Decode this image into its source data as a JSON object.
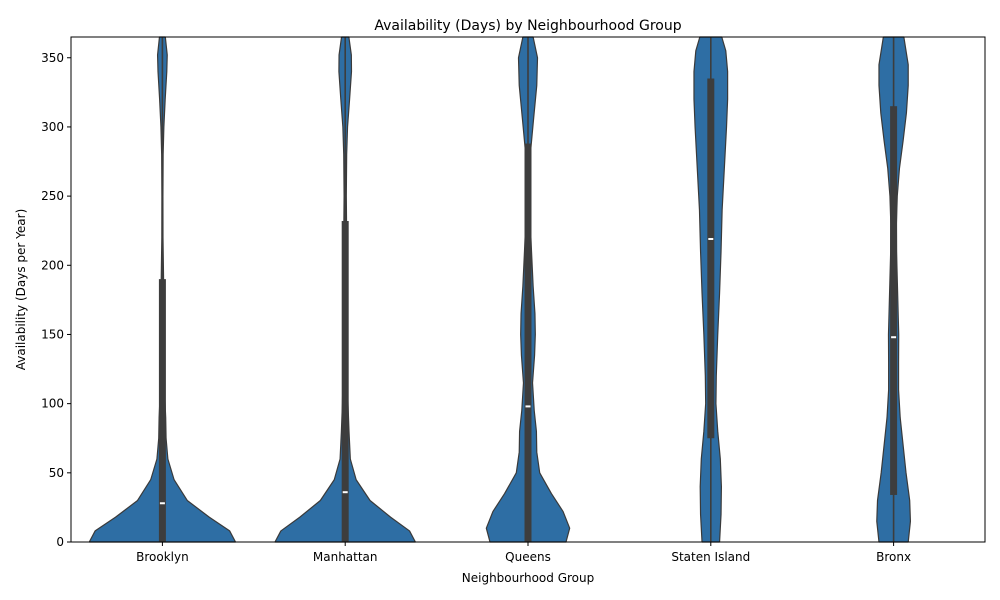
{
  "chart_data": {
    "type": "violin",
    "title": "Availability (Days) by Neighbourhood Group",
    "xlabel": "Neighbourhood Group",
    "ylabel": "Availability (Days per Year)",
    "ylim": [
      0,
      365
    ],
    "yticks": [
      0,
      50,
      100,
      150,
      200,
      250,
      300,
      350
    ],
    "categories": [
      "Brooklyn",
      "Manhattan",
      "Queens",
      "Staten Island",
      "Bronx"
    ],
    "color": "#2e6ea4",
    "box_color": "#3d3d3d",
    "grid": false,
    "legend": "none",
    "violins": [
      {
        "category": "Brooklyn",
        "min": 0,
        "q1": 0,
        "median": 28,
        "q3": 190,
        "max": 365,
        "density": [
          [
            0,
            1.0
          ],
          [
            8,
            0.92
          ],
          [
            18,
            0.64
          ],
          [
            30,
            0.34
          ],
          [
            45,
            0.16
          ],
          [
            60,
            0.075
          ],
          [
            75,
            0.05
          ],
          [
            90,
            0.045
          ],
          [
            110,
            0.028
          ],
          [
            130,
            0.018
          ],
          [
            150,
            0.023
          ],
          [
            170,
            0.026
          ],
          [
            190,
            0.016
          ],
          [
            220,
            0.008
          ],
          [
            250,
            0.007
          ],
          [
            280,
            0.01
          ],
          [
            300,
            0.02
          ],
          [
            320,
            0.038
          ],
          [
            340,
            0.06
          ],
          [
            352,
            0.066
          ],
          [
            365,
            0.04
          ]
        ]
      },
      {
        "category": "Manhattan",
        "min": 0,
        "q1": 0,
        "median": 36,
        "q3": 232,
        "max": 365,
        "density": [
          [
            0,
            0.96
          ],
          [
            8,
            0.88
          ],
          [
            18,
            0.62
          ],
          [
            30,
            0.34
          ],
          [
            45,
            0.15
          ],
          [
            60,
            0.07
          ],
          [
            80,
            0.052
          ],
          [
            100,
            0.038
          ],
          [
            120,
            0.03
          ],
          [
            140,
            0.028
          ],
          [
            160,
            0.033
          ],
          [
            180,
            0.035
          ],
          [
            200,
            0.025
          ],
          [
            220,
            0.02
          ],
          [
            250,
            0.015
          ],
          [
            280,
            0.02
          ],
          [
            300,
            0.032
          ],
          [
            320,
            0.06
          ],
          [
            340,
            0.086
          ],
          [
            352,
            0.084
          ],
          [
            365,
            0.05
          ]
        ]
      },
      {
        "category": "Queens",
        "min": 0,
        "q1": 0,
        "median": 98,
        "q3": 288,
        "max": 365,
        "density": [
          [
            0,
            0.52
          ],
          [
            10,
            0.57
          ],
          [
            22,
            0.48
          ],
          [
            35,
            0.32
          ],
          [
            50,
            0.16
          ],
          [
            65,
            0.12
          ],
          [
            80,
            0.115
          ],
          [
            95,
            0.085
          ],
          [
            115,
            0.062
          ],
          [
            135,
            0.09
          ],
          [
            150,
            0.1
          ],
          [
            165,
            0.095
          ],
          [
            185,
            0.07
          ],
          [
            210,
            0.048
          ],
          [
            230,
            0.032
          ],
          [
            260,
            0.03
          ],
          [
            285,
            0.04
          ],
          [
            305,
            0.075
          ],
          [
            330,
            0.12
          ],
          [
            350,
            0.13
          ],
          [
            365,
            0.07
          ]
        ]
      },
      {
        "category": "Staten Island",
        "min": 0,
        "q1": 75,
        "median": 219,
        "q3": 335,
        "max": 365,
        "density": [
          [
            0,
            0.12
          ],
          [
            20,
            0.14
          ],
          [
            40,
            0.145
          ],
          [
            60,
            0.13
          ],
          [
            80,
            0.095
          ],
          [
            100,
            0.07
          ],
          [
            120,
            0.075
          ],
          [
            150,
            0.095
          ],
          [
            180,
            0.12
          ],
          [
            210,
            0.14
          ],
          [
            240,
            0.155
          ],
          [
            270,
            0.185
          ],
          [
            300,
            0.215
          ],
          [
            320,
            0.23
          ],
          [
            340,
            0.23
          ],
          [
            355,
            0.205
          ],
          [
            365,
            0.15
          ]
        ]
      },
      {
        "category": "Bronx",
        "min": 0,
        "q1": 34,
        "median": 148,
        "q3": 315,
        "max": 365,
        "density": [
          [
            0,
            0.2
          ],
          [
            15,
            0.23
          ],
          [
            30,
            0.22
          ],
          [
            50,
            0.17
          ],
          [
            70,
            0.13
          ],
          [
            90,
            0.09
          ],
          [
            110,
            0.068
          ],
          [
            130,
            0.068
          ],
          [
            150,
            0.07
          ],
          [
            170,
            0.06
          ],
          [
            190,
            0.05
          ],
          [
            210,
            0.04
          ],
          [
            230,
            0.038
          ],
          [
            250,
            0.05
          ],
          [
            270,
            0.08
          ],
          [
            290,
            0.13
          ],
          [
            310,
            0.175
          ],
          [
            330,
            0.2
          ],
          [
            345,
            0.2
          ],
          [
            365,
            0.14
          ]
        ]
      }
    ]
  }
}
